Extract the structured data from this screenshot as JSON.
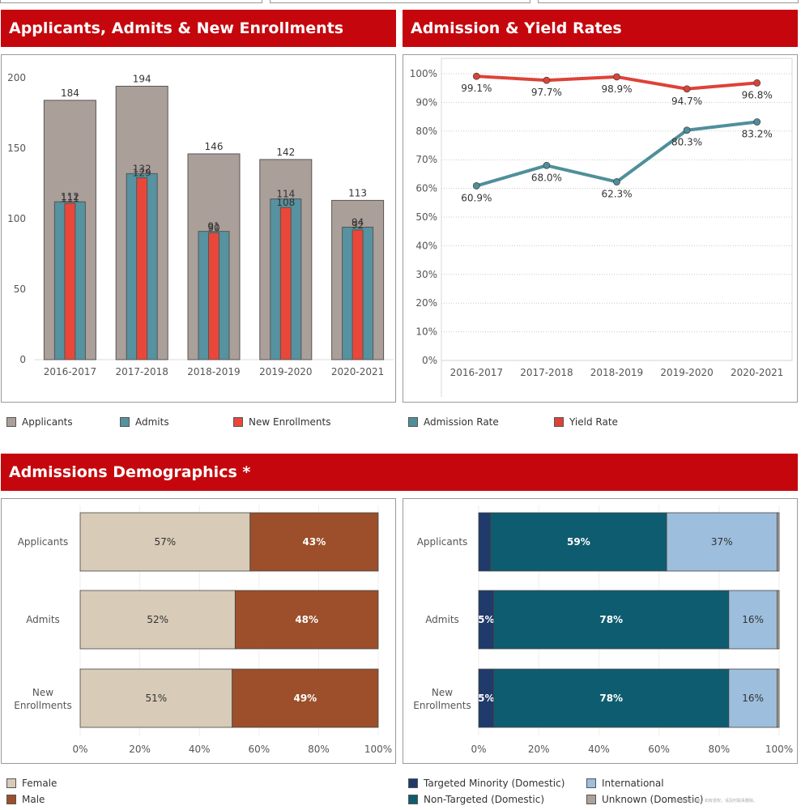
{
  "banners": {
    "enrollment": "Applicants, Admits & New Enrollments",
    "rates": "Admission & Yield Rates",
    "demographics": "Admissions Demographics *"
  },
  "colors": {
    "banner": "#c5070d",
    "applicants": "#ab9f9a",
    "admits": "#5692a0",
    "enrollments": "#e8473a",
    "admissionRate": "#4f8f9b",
    "yieldRate": "#de4237",
    "female": "#d8cbb7",
    "male": "#9c4f2a",
    "targeted": "#1f3a6b",
    "nontargeted": "#0e5c6f",
    "international": "#9dbedc",
    "unknown": "#aca199"
  },
  "chart_data": [
    {
      "id": "enrollment",
      "type": "bar",
      "categories": [
        "2016-2017",
        "2017-2018",
        "2018-2019",
        "2019-2020",
        "2020-2021"
      ],
      "series": [
        {
          "name": "Applicants",
          "values": [
            184,
            194,
            146,
            142,
            113
          ]
        },
        {
          "name": "Admits",
          "values": [
            112,
            132,
            91,
            114,
            94
          ]
        },
        {
          "name": "New Enrollments",
          "values": [
            111,
            129,
            90,
            108,
            92
          ]
        }
      ],
      "yticks": [
        0,
        50,
        100,
        150,
        200
      ],
      "ylim": [
        0,
        200
      ]
    },
    {
      "id": "rates",
      "type": "line",
      "categories": [
        "2016-2017",
        "2017-2018",
        "2018-2019",
        "2019-2020",
        "2020-2021"
      ],
      "series": [
        {
          "name": "Admission Rate",
          "values": [
            60.9,
            68.0,
            62.3,
            80.3,
            83.2
          ],
          "labels": [
            "60.9%",
            "68.0%",
            "62.3%",
            "80.3%",
            "83.2%"
          ]
        },
        {
          "name": "Yield Rate",
          "values": [
            99.1,
            97.7,
            98.9,
            94.7,
            96.8
          ],
          "labels": [
            "99.1%",
            "97.7%",
            "98.9%",
            "94.7%",
            "96.8%"
          ]
        }
      ],
      "yticks": [
        "0%",
        "10%",
        "20%",
        "30%",
        "40%",
        "50%",
        "60%",
        "70%",
        "80%",
        "90%",
        "100%"
      ],
      "ylim": [
        0,
        100
      ]
    },
    {
      "id": "gender",
      "type": "bar",
      "orientation": "horizontal-stacked-percent",
      "categories": [
        "Applicants",
        "Admits",
        "New Enrollments"
      ],
      "series": [
        {
          "name": "Female",
          "values": [
            57,
            52,
            51
          ]
        },
        {
          "name": "Male",
          "values": [
            43,
            48,
            49
          ]
        }
      ],
      "xticks": [
        "0%",
        "20%",
        "40%",
        "60%",
        "80%",
        "100%"
      ]
    },
    {
      "id": "ethnicity",
      "type": "bar",
      "orientation": "horizontal-stacked-percent",
      "categories": [
        "Applicants",
        "Admits",
        "New Enrollments"
      ],
      "series": [
        {
          "name": "Targeted Minority (Domestic)",
          "values": [
            4,
            5,
            5
          ],
          "labels": [
            "",
            "5%",
            "5%"
          ]
        },
        {
          "name": "Non-Targeted (Domestic)",
          "values": [
            59,
            78,
            78
          ],
          "labels": [
            "59%",
            "78%",
            "78%"
          ]
        },
        {
          "name": "International",
          "values": [
            37,
            16,
            16
          ],
          "labels": [
            "37%",
            "16%",
            "16%"
          ]
        },
        {
          "name": "Unknown (Domestic)",
          "values": [
            0.7,
            0.7,
            0.7
          ],
          "labels": [
            "",
            "",
            ""
          ]
        }
      ],
      "xticks": [
        "0%",
        "20%",
        "40%",
        "60%",
        "80%",
        "100%"
      ]
    }
  ],
  "legends": {
    "enrollment": [
      "Applicants",
      "Admits",
      "New Enrollments"
    ],
    "rates": [
      "Admission Rate",
      "Yield Rate"
    ],
    "gender": [
      "Female",
      "Male"
    ],
    "ethnicity": [
      "Targeted Minority (Domestic)",
      "Non-Targeted (Domestic)",
      "International",
      "Unknown (Domestic)"
    ]
  },
  "watermark": "图片来源于网络，如有侵权，请及时联系删除。"
}
